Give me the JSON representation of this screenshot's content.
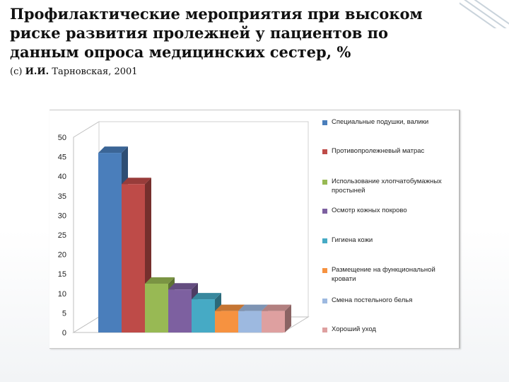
{
  "slide": {
    "title": "Профилактические мероприятия при высоком риске развития пролежней у пациентов по данным опроса медицинских сестер, %",
    "subtitle_prefix": "(c) ",
    "subtitle_author": "И.И.",
    "subtitle_rest": " Тарновская, 2001"
  },
  "chart_data": {
    "type": "bar",
    "style": "3d-column",
    "title": "",
    "xlabel": "",
    "ylabel": "",
    "ylim": [
      0,
      50
    ],
    "yticks": [
      0,
      5,
      10,
      15,
      20,
      25,
      30,
      35,
      40,
      45,
      50
    ],
    "grid": false,
    "legend_position": "right",
    "series": [
      {
        "name": "Специальные подушки, валики",
        "value": 46,
        "color": "#4a7ebb"
      },
      {
        "name": "Противопролежневый матрас",
        "value": 38,
        "color": "#be4b48"
      },
      {
        "name": "Использование хлопчатобумажных простыней",
        "value": 12.5,
        "color": "#98b954"
      },
      {
        "name": "Осмотр кожных покрово",
        "value": 11,
        "color": "#7d60a0"
      },
      {
        "name": "Гигиена кожи",
        "value": 8.5,
        "color": "#46aac5"
      },
      {
        "name": "Размещение на функциональной кровати",
        "value": 5.5,
        "color": "#f69240"
      },
      {
        "name": "Смена постельного белья",
        "value": 5.5,
        "color": "#9db9e0"
      },
      {
        "name": "Хороший уход",
        "value": 5.5,
        "color": "#dea0a0"
      }
    ]
  }
}
